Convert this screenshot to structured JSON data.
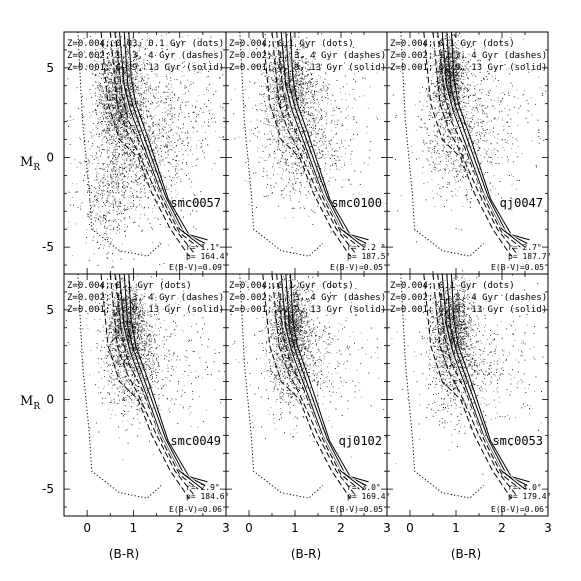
{
  "figure": {
    "ylabel_main": "M",
    "ylabel_sub": "R",
    "xlabel": "(B-R)"
  },
  "chart_data": [
    {
      "type": "scatter",
      "name": "smc0057",
      "r": "r= 1.1°",
      "p": "p= 164.4°",
      "ebv": "E(B-V)=0.09",
      "legend": [
        "Z=0.004; 0.03, 0.1 Gyr (dots)",
        "Z=0.002; 1, 3, 4 Gyr (dashes)",
        "Z=0.001; 6, 9, 13 Gyr (solid)"
      ],
      "xlim": [
        -0.5,
        3
      ],
      "ylim": [
        7,
        -6.5
      ],
      "density": [
        {
          "x": 0.7,
          "y": 3.5,
          "sx": 0.25,
          "sy": 1.6,
          "n": 1600
        },
        {
          "x": 1.1,
          "y": 0.3,
          "sx": 0.5,
          "sy": 2.0,
          "n": 900
        },
        {
          "x": 0.4,
          "y": -2.5,
          "sx": 0.3,
          "sy": 1.5,
          "n": 350
        },
        {
          "x": 1.5,
          "y": 2.5,
          "sx": 0.8,
          "sy": 2.5,
          "n": 700
        }
      ]
    },
    {
      "type": "scatter",
      "name": "smc0100",
      "r": "r= 2.2 °",
      "p": "p= 187.5°",
      "ebv": "E(B-V)=0.05",
      "legend": [
        "Z=0.004; 0.1 Gyr (dots)",
        "Z=0.002; 1, 3, 4 Gyr (dashes)",
        "Z=0.001; 6, 9, 13 Gyr (solid)"
      ],
      "xlim": [
        -0.5,
        3
      ],
      "ylim": [
        7,
        -6.5
      ],
      "density": [
        {
          "x": 0.85,
          "y": 4.0,
          "sx": 0.25,
          "sy": 1.2,
          "n": 1100
        },
        {
          "x": 1.1,
          "y": 0.5,
          "sx": 0.4,
          "sy": 1.5,
          "n": 500
        },
        {
          "x": 1.3,
          "y": 2.5,
          "sx": 0.7,
          "sy": 2.5,
          "n": 550
        }
      ]
    },
    {
      "type": "scatter",
      "name": "qj0047",
      "r": "r= 2.7°",
      "p": "p= 187.7°",
      "ebv": "E(B-V)=0.05",
      "legend": [
        "Z=0.004; 0.1 Gyr (dots)",
        "Z=0.002; 1, 3, 4 Gyr (dashes)",
        "Z=0.001; 6, 9, 13 Gyr (solid)"
      ],
      "xlim": [
        -0.5,
        3
      ],
      "ylim": [
        7,
        -6.5
      ],
      "density": [
        {
          "x": 0.85,
          "y": 4.5,
          "sx": 0.15,
          "sy": 1.0,
          "n": 1200
        },
        {
          "x": 1.0,
          "y": 1.5,
          "sx": 0.35,
          "sy": 1.8,
          "n": 600
        },
        {
          "x": 1.4,
          "y": 2.0,
          "sx": 0.8,
          "sy": 2.5,
          "n": 500
        }
      ]
    },
    {
      "type": "scatter",
      "name": "smc0049",
      "r": "r= 2.9°",
      "p": "p= 184.6°",
      "ebv": "E(B-V)=0.06",
      "legend": [
        "Z=0.004; 0.1 Gyr (dots)",
        "Z=0.002; 1, 3, 4 Gyr (dashes)",
        "Z=0.001; 6, 9, 13 Gyr (solid)"
      ],
      "xlim": [
        -0.5,
        3
      ],
      "ylim": [
        7,
        -6.5
      ],
      "density": [
        {
          "x": 0.85,
          "y": 4.2,
          "sx": 0.2,
          "sy": 1.1,
          "n": 1400
        },
        {
          "x": 1.0,
          "y": 1.8,
          "sx": 0.3,
          "sy": 1.3,
          "n": 600
        },
        {
          "x": 1.3,
          "y": 2.5,
          "sx": 0.7,
          "sy": 2.2,
          "n": 450
        }
      ]
    },
    {
      "type": "scatter",
      "name": "qj0102",
      "r": "r= 3.0°",
      "p": "p= 169.4°",
      "ebv": "E(B-V)=0.05",
      "legend": [
        "Z=0.004; 0.1 Gyr (dots)",
        "Z=0.002; 1, 3, 4 Gyr (dashes)",
        "Z=0.001; 6, 9, 13 Gyr (solid)"
      ],
      "xlim": [
        -0.5,
        3
      ],
      "ylim": [
        7,
        -6.5
      ],
      "density": [
        {
          "x": 0.9,
          "y": 4.2,
          "sx": 0.2,
          "sy": 1.1,
          "n": 1300
        },
        {
          "x": 1.0,
          "y": 1.8,
          "sx": 0.3,
          "sy": 1.3,
          "n": 500
        },
        {
          "x": 1.3,
          "y": 2.5,
          "sx": 0.7,
          "sy": 2.2,
          "n": 400
        }
      ]
    },
    {
      "type": "scatter",
      "name": "smc0053",
      "r": "r= 4.0°",
      "p": "p= 179.4°",
      "ebv": "E(B-V)=0.06",
      "legend": [
        "Z=0.004; 0.1 Gyr (dots)",
        "Z=0.002; 1, 3, 4 Gyr (dashes)",
        "Z=0.001; 6, 9, 13 Gyr (solid)"
      ],
      "xlim": [
        -0.5,
        3
      ],
      "ylim": [
        7,
        -6.5
      ],
      "density": [
        {
          "x": 0.9,
          "y": 4.2,
          "sx": 0.2,
          "sy": 1.1,
          "n": 1300
        },
        {
          "x": 1.0,
          "y": 1.8,
          "sx": 0.3,
          "sy": 1.3,
          "n": 500
        },
        {
          "x": 1.5,
          "y": 2.0,
          "sx": 0.8,
          "sy": 2.0,
          "n": 450
        }
      ]
    }
  ],
  "axes": {
    "xticks": [
      0,
      1,
      2,
      3
    ],
    "yticks": [
      -5,
      0,
      5
    ],
    "xtick_labels": [
      "0",
      "1",
      "2",
      "3"
    ],
    "ytick_labels": [
      "-5",
      "0",
      "5"
    ]
  },
  "isochrones": {
    "dots": [
      [
        -0.2,
        7
      ],
      [
        -0.1,
        2
      ],
      [
        0.05,
        -2
      ],
      [
        0.1,
        -4
      ],
      [
        0.7,
        -5.2
      ],
      [
        1.3,
        -5.5
      ],
      [
        1.6,
        -4.8
      ]
    ],
    "dashes": [
      [
        [
          0.3,
          7
        ],
        [
          0.45,
          3
        ],
        [
          0.7,
          1
        ],
        [
          1.1,
          0
        ],
        [
          1.4,
          -2
        ],
        [
          1.8,
          -4
        ],
        [
          2.2,
          -5.5
        ]
      ],
      [
        [
          0.5,
          7
        ],
        [
          0.65,
          3
        ],
        [
          0.85,
          1.5
        ],
        [
          1.1,
          0.3
        ],
        [
          1.5,
          -2
        ],
        [
          1.9,
          -4
        ],
        [
          2.3,
          -5.3
        ]
      ],
      [
        [
          0.6,
          7
        ],
        [
          0.75,
          3.5
        ],
        [
          0.9,
          2
        ],
        [
          1.2,
          0.5
        ],
        [
          1.6,
          -2.2
        ],
        [
          2.0,
          -4.2
        ],
        [
          2.4,
          -5.0
        ]
      ]
    ],
    "solid": [
      [
        [
          0.7,
          7
        ],
        [
          0.8,
          4
        ],
        [
          0.95,
          2.5
        ],
        [
          1.2,
          0.8
        ],
        [
          1.6,
          -2
        ],
        [
          2.0,
          -4
        ],
        [
          2.5,
          -5.0
        ]
      ],
      [
        [
          0.8,
          7
        ],
        [
          0.88,
          4
        ],
        [
          1.0,
          2.8
        ],
        [
          1.25,
          1.0
        ],
        [
          1.7,
          -2.2
        ],
        [
          2.1,
          -4.2
        ],
        [
          2.55,
          -4.8
        ]
      ],
      [
        [
          0.9,
          7
        ],
        [
          0.95,
          4.5
        ],
        [
          1.05,
          3.0
        ],
        [
          1.3,
          1.2
        ],
        [
          1.75,
          -2.3
        ],
        [
          2.2,
          -4.3
        ],
        [
          2.6,
          -4.6
        ]
      ]
    ]
  }
}
